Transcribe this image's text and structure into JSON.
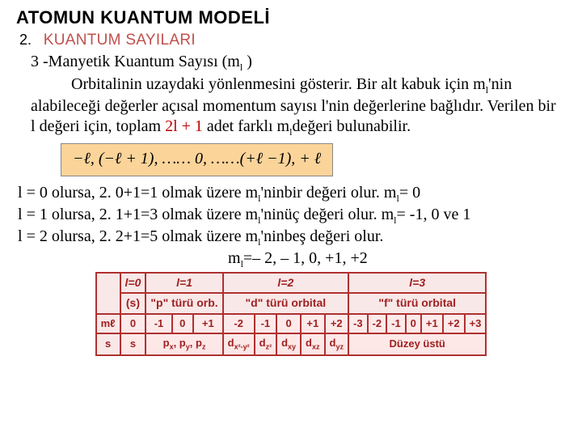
{
  "header": {
    "main_title": "ATOMUN KUANTUM MODELİ",
    "sub_number": "2.",
    "sub_title": "KUANTUM SAYILARI"
  },
  "section": {
    "heading_pre": "3 -Manyetik Kuantum Sayısı (m",
    "heading_sub": "l",
    "heading_post": " )",
    "para": "Orbitalinin uzaydaki yönlenmesini gösterir. Bir alt kabuk için m",
    "para_sub1": "l",
    "para_mid": "'nin alabileceği değerler açısal momentum sayısı ",
    "para_ell": "l",
    "para_mid2": "'nin değerlerine bağlıdır. Verilen bir ",
    "para_ell2": "l",
    "para_mid3": " değeri için, toplam ",
    "para_red": "2l + 1",
    "para_mid4": " adet farklı m",
    "para_sub2": "l",
    "para_end": "değeri bulunabilir."
  },
  "formula": "−ℓ, (−ℓ + 1), …… 0, ……(+ℓ −1), + ℓ",
  "cases": {
    "c1_pre": "l",
    "c1": " = 0 olursa, 2. 0+1=1 olmak üzere m",
    "c1_sub": "l",
    "c1_mid": "'ninbir değeri olur. m",
    "c1_sub2": "l",
    "c1_end": "= 0",
    "c2_pre": "l",
    "c2": " = 1 olursa, 2. 1+1=3 olmak üzere m",
    "c2_sub": "l",
    "c2_mid": "'ninüç değeri olur. m",
    "c2_sub2": "l",
    "c2_end": "= -1, 0 ve 1",
    "c3_pre": "l",
    "c3": " = 2 olursa, 2. 2+1=5 olmak üzere m",
    "c3_sub": "l",
    "c3_mid": "'ninbeş değeri olur.",
    "ml_pre": "m",
    "ml_sub": "l",
    "ml_end": "=– 2, – 1, 0, +1, +2"
  },
  "table": {
    "headers": {
      "l0": "l=0",
      "l1": "l=1",
      "l2": "l=2",
      "l3": "l=3",
      "s": "(s)",
      "p": "\"p\" türü orb.",
      "d": "\"d\" türü orbital",
      "f": "\"f\" türü orbital"
    },
    "row_ml_label": "mℓ",
    "ml_values": [
      "0",
      "-1",
      "0",
      "+1",
      "-2",
      "-1",
      "0",
      "+1",
      "+2",
      "-3",
      "-2",
      "-1",
      "0",
      "+1",
      "+2",
      "+3"
    ],
    "row_s_label": "s",
    "s_cell": "s",
    "p_cells": "pₓ, p_y, p_z",
    "d_cells_1": "d",
    "d_cells_2": "d",
    "d_cells_3": "d",
    "d_cells_4": "d",
    "d_cells_5": "d",
    "f_cell": "Düzey üstü"
  },
  "colors": {
    "title_red": "#c0504d",
    "text_red": "#c00000",
    "formula_bg": "#fbd49a",
    "table_border": "#b03030"
  }
}
